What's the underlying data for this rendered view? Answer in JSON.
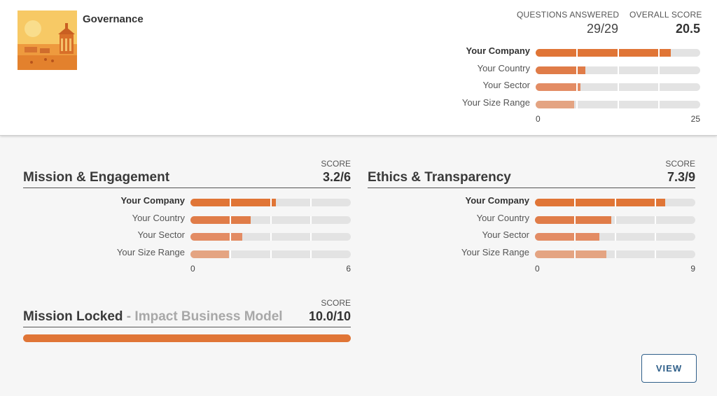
{
  "header": {
    "title": "Governance",
    "questions_answered_label": "QUESTIONS ANSWERED",
    "questions_answered_value": "29/29",
    "overall_score_label": "OVERALL SCORE",
    "overall_score_value": "20.5"
  },
  "overall_chart": {
    "axis_min": "0",
    "axis_max": "25",
    "max": 25,
    "rows": [
      {
        "label": "Your Company",
        "value": 20.5
      },
      {
        "label": "Your Country",
        "value": 7.6
      },
      {
        "label": "Your Sector",
        "value": 6.8
      },
      {
        "label": "Your Size Range",
        "value": 5.8
      }
    ]
  },
  "mission_engagement": {
    "score_label": "SCORE",
    "title": "Mission & Engagement",
    "score": "3.2/6",
    "axis_min": "0",
    "axis_max": "6",
    "max": 6,
    "rows": [
      {
        "label": "Your Company",
        "value": 3.2
      },
      {
        "label": "Your Country",
        "value": 2.25
      },
      {
        "label": "Your Sector",
        "value": 1.95
      },
      {
        "label": "Your Size Range",
        "value": 1.45
      }
    ]
  },
  "ethics_transparency": {
    "score_label": "SCORE",
    "title": "Ethics & Transparency",
    "score": "7.3/9",
    "axis_min": "0",
    "axis_max": "9",
    "max": 9,
    "rows": [
      {
        "label": "Your Company",
        "value": 7.3
      },
      {
        "label": "Your Country",
        "value": 4.3
      },
      {
        "label": "Your Sector",
        "value": 3.6
      },
      {
        "label": "Your Size Range",
        "value": 4.0
      }
    ]
  },
  "mission_locked": {
    "score_label": "SCORE",
    "title": "Mission Locked",
    "subtitle": " - Impact Business Model",
    "score": "10.0/10",
    "fill_fraction": 1.0
  },
  "view_button": "VIEW",
  "colors": {
    "company": "#e07536",
    "country": "#e07c48",
    "sector": "#e38c64",
    "size_range": "#e4a482",
    "track": "#e3e3e3",
    "button": "#2f5f8a"
  }
}
